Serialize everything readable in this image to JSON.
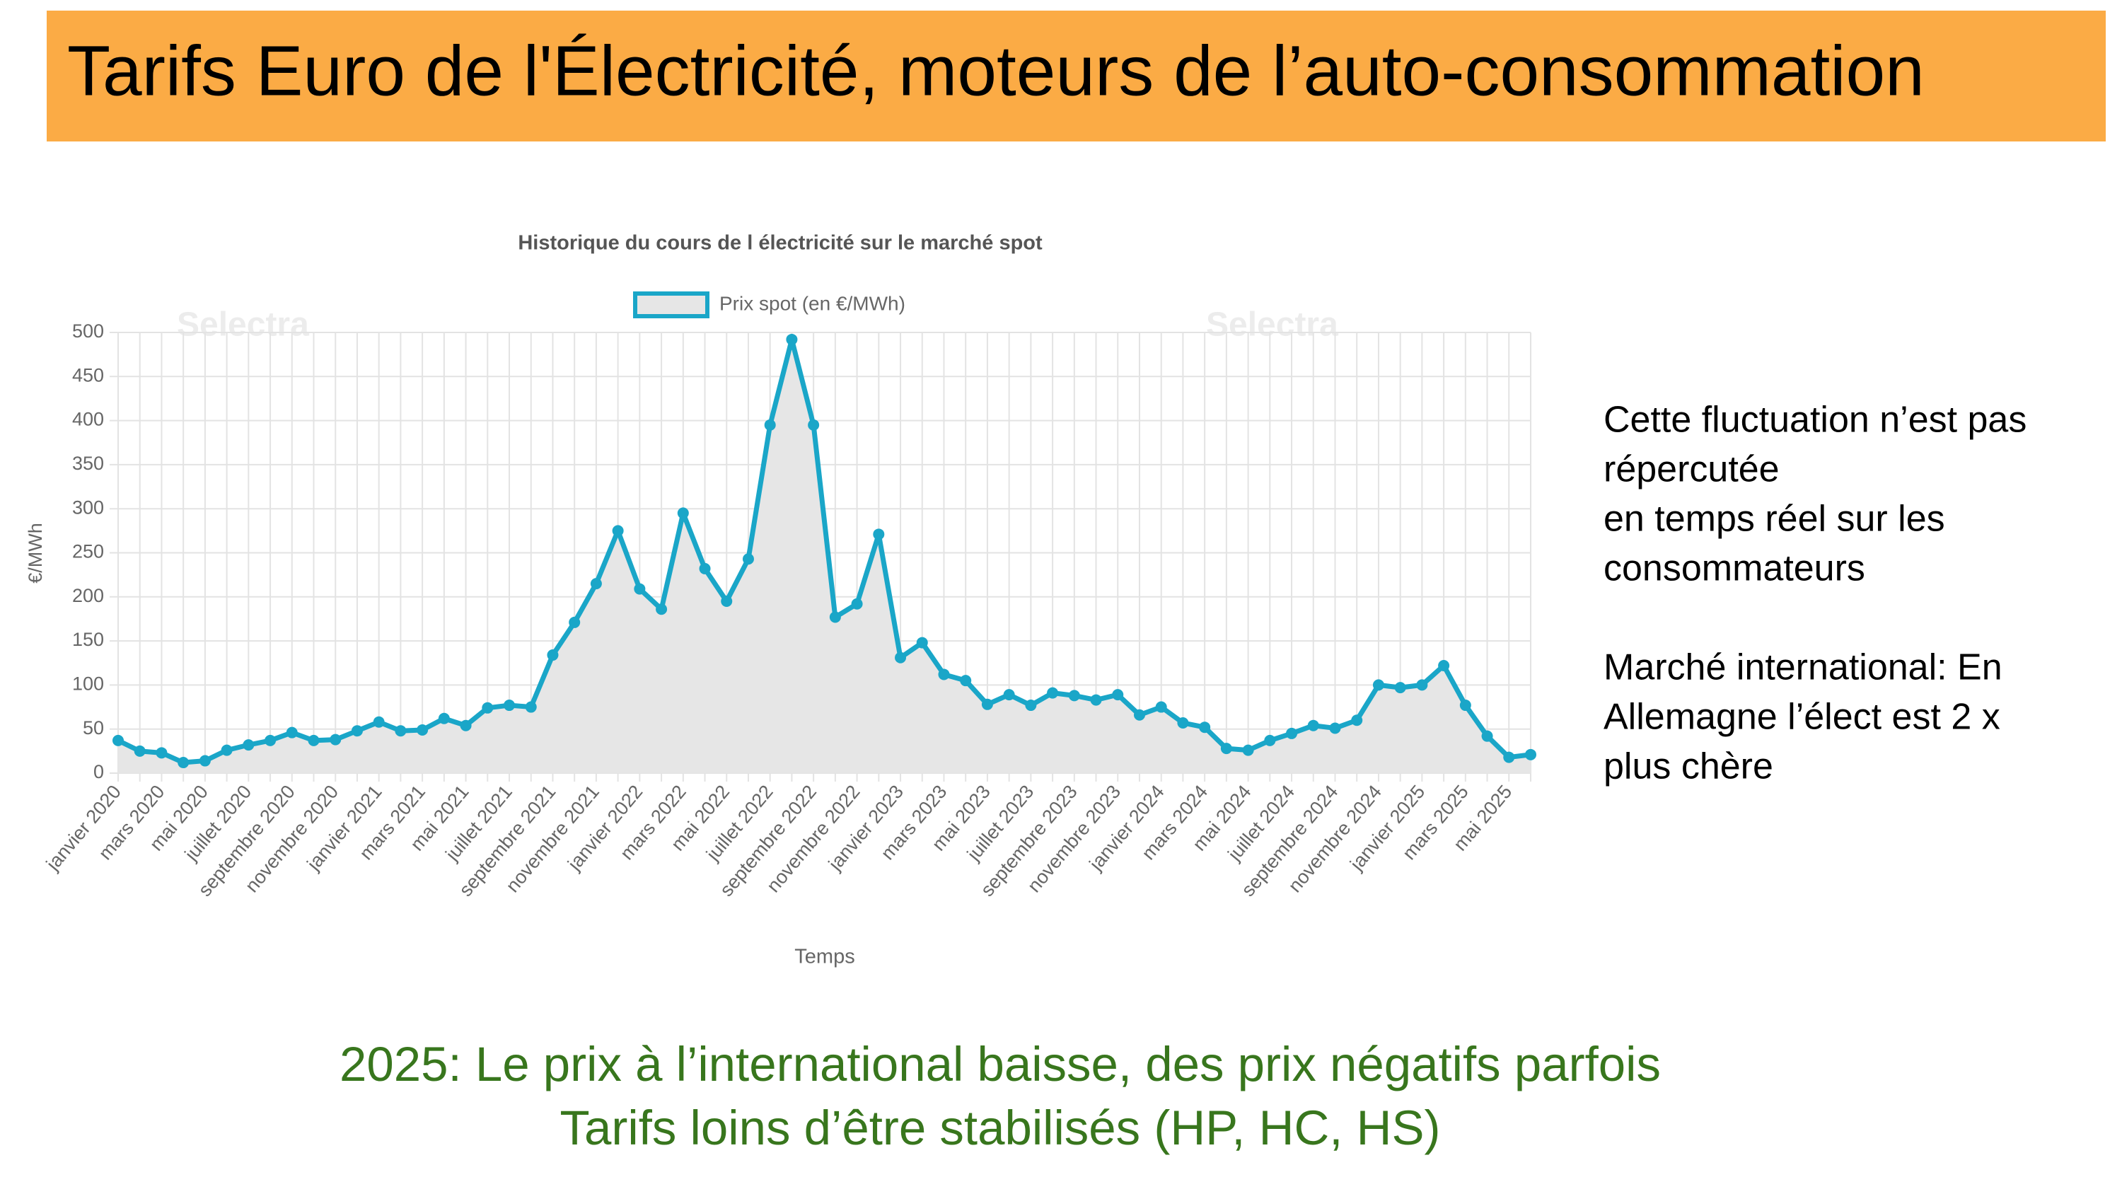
{
  "slide": {
    "title": "Tarifs Euro de l'Électricité, moteurs de l’auto-consommation",
    "side_text": [
      "Cette fluctuation n’est pas",
      "répercutée",
      "en temps réel sur les",
      "consommateurs",
      "Marché international: En",
      "Allemagne l’élect est 2 x",
      "plus chère"
    ],
    "bottom_text": [
      "2025: Le prix à l’international baisse, des prix négatifs parfois",
      "Tarifs loins d’être stabilisés (HP, HC, HS)"
    ]
  },
  "chart_data": {
    "type": "line",
    "title": "Historique du cours de l électricité sur le marché spot",
    "watermark": "Selectra",
    "x_label": "Temps",
    "y_label": "€/MWh",
    "categories": [
      "janvier 2020",
      null,
      "mars 2020",
      null,
      "mai 2020",
      null,
      "juillet 2020",
      null,
      "septembre 2020",
      null,
      "novembre 2020",
      null,
      "janvier 2021",
      null,
      "mars 2021",
      null,
      "mai 2021",
      null,
      "juillet 2021",
      null,
      "septembre 2021",
      null,
      "novembre 2021",
      null,
      "janvier 2022",
      null,
      "mars 2022",
      null,
      "mai 2022",
      null,
      "juillet 2022",
      null,
      "septembre 2022",
      null,
      "novembre 2022",
      null,
      "janvier 2023",
      null,
      "mars 2023",
      null,
      "mai 2023",
      null,
      "juillet 2023",
      null,
      "septembre 2023",
      null,
      "novembre 2023",
      null,
      "janvier 2024",
      null,
      "mars 2024",
      null,
      "mai 2024",
      null,
      "juillet 2024",
      null,
      "septembre 2024",
      null,
      "novembre 2024",
      null,
      "janvier 2025",
      null,
      "mars 2025",
      null,
      "mai 2025",
      null
    ],
    "series": [
      {
        "name": "Prix spot (en €/MWh)",
        "color": "#1aa6c8",
        "fill": "#e6e6e6",
        "values": [
          37,
          25,
          23,
          12,
          14,
          26,
          32,
          37,
          46,
          37,
          38,
          48,
          58,
          48,
          49,
          62,
          54,
          74,
          77,
          75,
          134,
          171,
          215,
          275,
          209,
          186,
          295,
          232,
          195,
          243,
          395,
          492,
          395,
          177,
          192,
          271,
          131,
          148,
          112,
          105,
          78,
          89,
          77,
          91,
          88,
          83,
          89,
          66,
          75,
          57,
          52,
          28,
          26,
          37,
          45,
          54,
          51,
          60,
          100,
          97,
          100,
          122,
          77,
          42,
          18,
          21
        ]
      }
    ],
    "ylim": [
      0,
      500
    ],
    "yticks": [
      0,
      50,
      100,
      150,
      200,
      250,
      300,
      350,
      400,
      450,
      500
    ],
    "grid": true
  }
}
